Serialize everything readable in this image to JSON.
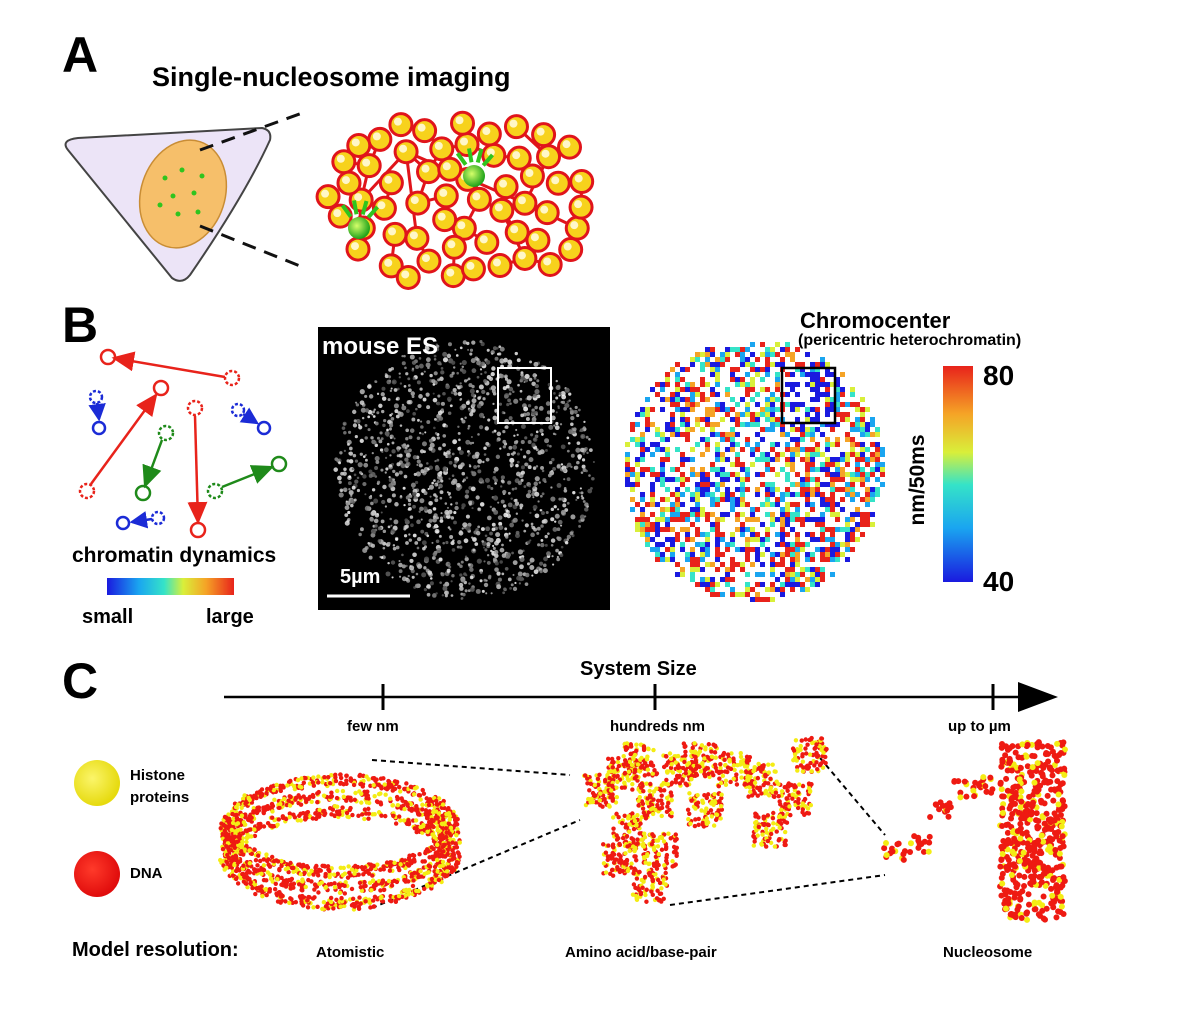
{
  "panel_a": {
    "letter": "A",
    "title": "Single-nucleosome imaging"
  },
  "panel_b": {
    "letter": "B",
    "dynamics_label": "chromatin dynamics",
    "scale_small": "small",
    "scale_large": "large",
    "image_label": "mouse ES",
    "scalebar_label": "5µm",
    "chromocenter_title": "Chromocenter",
    "chromocenter_sub": "(pericentric heterochromatin)",
    "colorbar_max": "80",
    "colorbar_min": "40",
    "colorbar_unit": "nm/50ms"
  },
  "panel_c": {
    "letter": "C",
    "axis_title": "System Size",
    "ticks": [
      "few nm",
      "hundreds nm",
      "up to µm"
    ],
    "legend": {
      "histone": "Histone proteins",
      "histone_line1": "Histone",
      "histone_line2": "proteins",
      "dna": "DNA"
    },
    "resolution_label": "Model resolution:",
    "resolutions": [
      "Atomistic",
      "Amino acid/base-pair",
      "Nucleosome"
    ]
  },
  "colors": {
    "nucleosome_fill": "#f7d21c",
    "nucleosome_edge": "#e0141b",
    "tracked": "#2fc41e",
    "cell_fill": "#ece4f7",
    "nucleus_fill": "#f6bf6a",
    "dna": "#ee1a12",
    "histone": "#f4ec14"
  }
}
